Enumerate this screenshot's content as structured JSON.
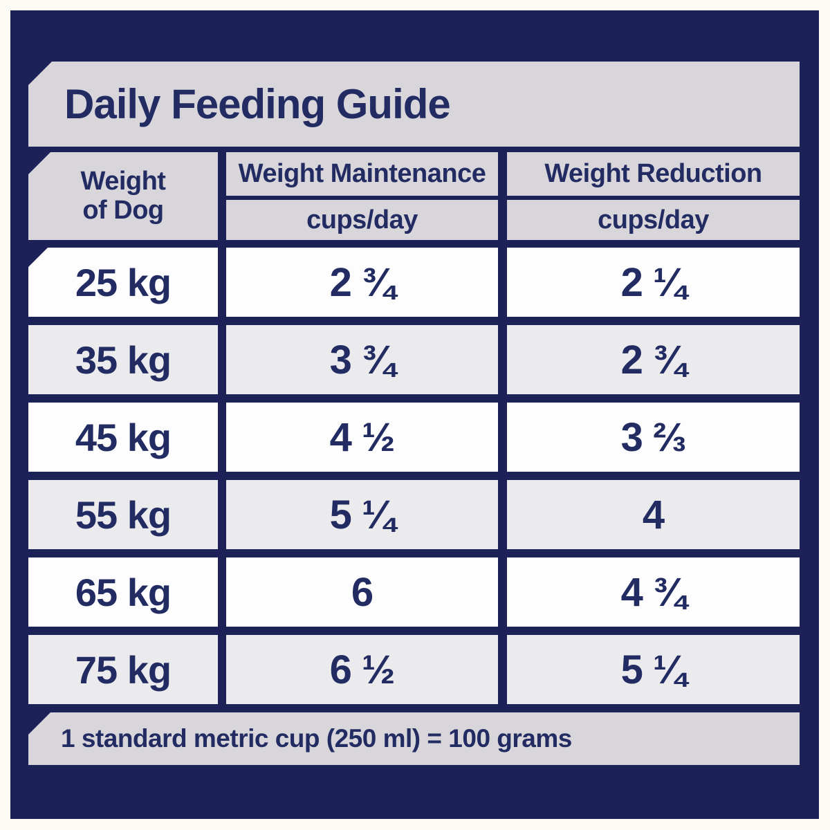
{
  "title": "Daily Feeding Guide",
  "colors": {
    "page_background": "#fdfbf5",
    "panel_navy": "#1c2158",
    "banner_gray": "#d8d6da",
    "row_white": "#fdfdfe",
    "row_alt_gray": "#ebebee",
    "text_navy": "#222c63"
  },
  "table": {
    "weight_header_line1": "Weight",
    "weight_header_line2": "of Dog",
    "columns": [
      {
        "label": "Weight Maintenance",
        "sublabel": "cups/day"
      },
      {
        "label": "Weight Reduction",
        "sublabel": "cups/day"
      }
    ],
    "rows": [
      {
        "weight": "25 kg",
        "maintenance": "2 ¾",
        "reduction": "2 ¼"
      },
      {
        "weight": "35 kg",
        "maintenance": "3 ¾",
        "reduction": "2 ¾"
      },
      {
        "weight": "45 kg",
        "maintenance": "4 ½",
        "reduction": "3 ⅔"
      },
      {
        "weight": "55 kg",
        "maintenance": "5 ¼",
        "reduction": "4"
      },
      {
        "weight": "65 kg",
        "maintenance": "6",
        "reduction": "4 ¾"
      },
      {
        "weight": "75 kg",
        "maintenance": "6 ½",
        "reduction": "5 ¼"
      }
    ]
  },
  "footer_note": "1 standard metric cup (250 ml) = 100 grams",
  "chart_data": {
    "type": "table",
    "title": "Daily Feeding Guide",
    "columns": [
      "Weight of Dog",
      "Weight Maintenance cups/day",
      "Weight Reduction cups/day"
    ],
    "rows": [
      [
        "25 kg",
        "2 ¾",
        "2 ¼"
      ],
      [
        "35 kg",
        "3 ¾",
        "2 ¾"
      ],
      [
        "45 kg",
        "4 ½",
        "3 ⅔"
      ],
      [
        "55 kg",
        "5 ¼",
        "4"
      ],
      [
        "65 kg",
        "6",
        "4 ¾"
      ],
      [
        "75 kg",
        "6 ½",
        "5 ¼"
      ]
    ],
    "weights_kg": [
      25,
      35,
      45,
      55,
      65,
      75
    ],
    "maintenance_cups_per_day": [
      2.75,
      3.75,
      4.5,
      5.25,
      6,
      6.5
    ],
    "reduction_cups_per_day": [
      2.25,
      2.75,
      3.67,
      4,
      4.75,
      5.25
    ],
    "note": "1 standard metric cup (250 ml) = 100 grams"
  }
}
